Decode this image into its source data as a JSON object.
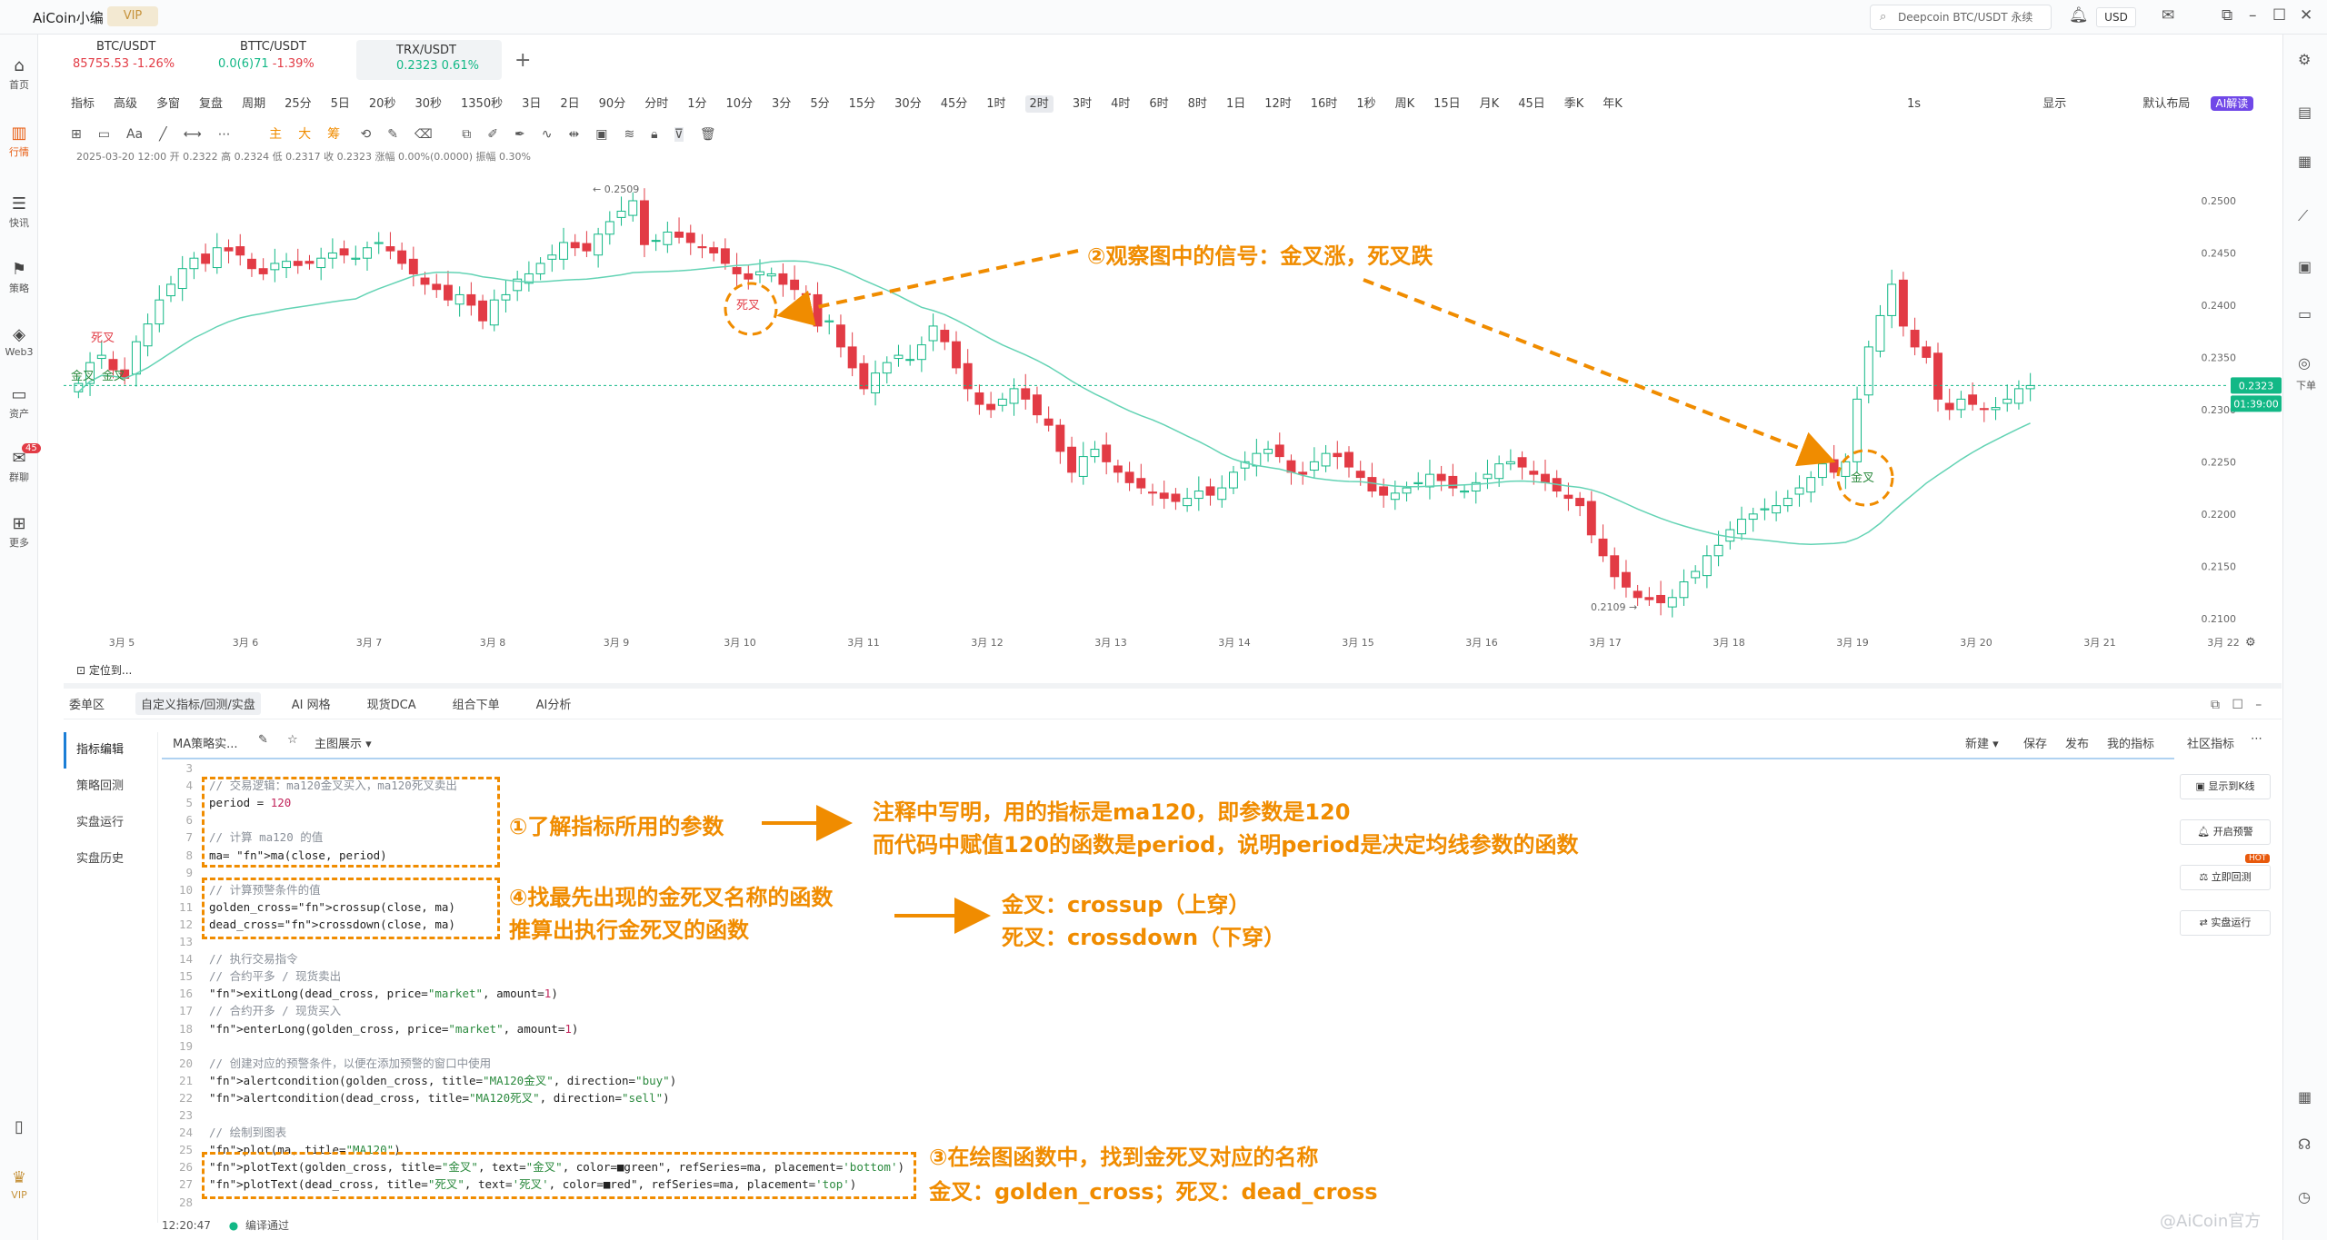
{
  "app": {
    "title": "AiCoin小编",
    "vip": "VIP"
  },
  "topbar": {
    "search": "Deepcoin BTC/USDT 永续",
    "currency": "USD"
  },
  "rail": [
    {
      "icon": "home-icon",
      "label": "首页"
    },
    {
      "icon": "market-icon",
      "label": "行情"
    },
    {
      "icon": "news-icon",
      "label": "快讯"
    },
    {
      "icon": "strategy-icon",
      "label": "策略"
    },
    {
      "icon": "web3-icon",
      "label": "Web3"
    },
    {
      "icon": "wallet-icon",
      "label": "资产"
    },
    {
      "icon": "chat-icon",
      "label": "群聊",
      "badge": "45"
    },
    {
      "icon": "more-icon",
      "label": "更多"
    }
  ],
  "rail_vip": "VIP",
  "right_rail_order": "下单",
  "tickers": [
    {
      "name": "BTC/USDT",
      "price": "85755.53",
      "change": "-1.26%"
    },
    {
      "name": "BTTC/USDT",
      "price": "0.0(6)71",
      "change": "-1.39%"
    },
    {
      "name": "TRX/USDT",
      "price": "0.2323",
      "change": "0.61%"
    }
  ],
  "toolbar": {
    "items": [
      "指标",
      "高级",
      "多窗",
      "复盘",
      "周期",
      "25分",
      "5日",
      "20秒",
      "30秒",
      "1350秒",
      "3日",
      "2日",
      "90分",
      "分时",
      "1分",
      "10分",
      "3分",
      "5分",
      "15分",
      "30分",
      "45分",
      "1时",
      "2时",
      "3时",
      "4时",
      "6时",
      "8时",
      "1日",
      "12时",
      "16时",
      "1秒",
      "周K",
      "15日",
      "月K",
      "45日",
      "季K",
      "年K"
    ],
    "selected": "2时",
    "right": [
      "1s",
      "显示",
      "默认布局",
      "AI解读"
    ]
  },
  "draw_toolbar": {
    "main": "主",
    "big": "大",
    "chou": "筹"
  },
  "ohlc": "2025-03-20 12:00  开 0.2322  高 0.2324  低 0.2317  收 0.2323  涨幅 0.00%(0.0000)  振幅 0.30%",
  "chart_data": {
    "type": "candlestick",
    "x_labels": [
      "3月 5",
      "3月 6",
      "3月 7",
      "3月 8",
      "3月 9",
      "3月 10",
      "3月 11",
      "3月 12",
      "3月 13",
      "3月 14",
      "3月 15",
      "3月 16",
      "3月 17",
      "3月 18",
      "3月 19",
      "3月 20",
      "3月 21",
      "3月 22"
    ],
    "y_ticks": [
      "0.2500",
      "0.2450",
      "0.2400",
      "0.2350",
      "0.2300",
      "0.2250",
      "0.2200",
      "0.2150",
      "0.2100"
    ],
    "ylim": [
      0.2085,
      0.252
    ],
    "high_marker": "0.2509",
    "low_marker": "0.2109",
    "last_price": "0.2323",
    "countdown": "01:39:00",
    "ma_color": "#63d3b4",
    "up_color": "#12b886",
    "down_color": "#e23b45",
    "close": [
      0.2325,
      0.2345,
      0.2352,
      0.2338,
      0.233,
      0.2365,
      0.2382,
      0.2405,
      0.242,
      0.2435,
      0.2445,
      0.244,
      0.2455,
      0.2452,
      0.2448,
      0.2435,
      0.243,
      0.244,
      0.2442,
      0.2438,
      0.244,
      0.2445,
      0.245,
      0.2448,
      0.2445,
      0.2455,
      0.246,
      0.2452,
      0.244,
      0.243,
      0.242,
      0.2415,
      0.2405,
      0.241,
      0.24,
      0.2385,
      0.2405,
      0.241,
      0.2425,
      0.243,
      0.244,
      0.2448,
      0.246,
      0.2455,
      0.2452,
      0.2468,
      0.248,
      0.249,
      0.25,
      0.2458,
      0.2462,
      0.247,
      0.2465,
      0.246,
      0.2455,
      0.245,
      0.244,
      0.243,
      0.2425,
      0.2432,
      0.243,
      0.242,
      0.2415,
      0.241,
      0.238,
      0.2385,
      0.236,
      0.234,
      0.232,
      0.2335,
      0.2345,
      0.2352,
      0.2348,
      0.2362,
      0.238,
      0.2365,
      0.234,
      0.232,
      0.2305,
      0.23,
      0.231,
      0.232,
      0.231,
      0.2295,
      0.2285,
      0.226,
      0.224,
      0.2255,
      0.2262,
      0.225,
      0.224,
      0.223,
      0.2225,
      0.222,
      0.2215,
      0.2212,
      0.2215,
      0.2222,
      0.2218,
      0.2225,
      0.224,
      0.225,
      0.2258,
      0.2262,
      0.2255,
      0.224,
      0.2238,
      0.225,
      0.2258,
      0.2255,
      0.2245,
      0.2235,
      0.2222,
      0.2218,
      0.222,
      0.2225,
      0.223,
      0.2238,
      0.2232,
      0.2225,
      0.2222,
      0.223,
      0.2238,
      0.2248,
      0.225,
      0.2245,
      0.2238,
      0.223,
      0.2222,
      0.2215,
      0.2208,
      0.218,
      0.216,
      0.214,
      0.213,
      0.212,
      0.2118,
      0.2115,
      0.212,
      0.2135,
      0.2145,
      0.216,
      0.217,
      0.2185,
      0.2195,
      0.22,
      0.2205,
      0.2208,
      0.2215,
      0.2225,
      0.2235,
      0.2248,
      0.224,
      0.225,
      0.231,
      0.236,
      0.239,
      0.242,
      0.238,
      0.236,
      0.235,
      0.231,
      0.23,
      0.231,
      0.2305,
      0.23,
      0.2302,
      0.231,
      0.232,
      0.2323
    ]
  },
  "chart_labels": {
    "dead1": "死叉",
    "gold1": "金叉",
    "gold1b": "金叉",
    "dead2": "死叉",
    "gold2": "金叉"
  },
  "panel": {
    "tabs": [
      "委单区",
      "自定义指标/回测/实盘",
      "AI 网格",
      "现货DCA",
      "组合下单",
      "AI分析"
    ],
    "active_tab": "自定义指标/回测/实盘",
    "left_menu": [
      "指标编辑",
      "策略回测",
      "实盘运行",
      "实盘历史"
    ],
    "editor": {
      "name": "MA策略实...",
      "display": "主图展示",
      "actions": [
        "新建",
        "保存",
        "发布",
        "我的指标",
        "社区指标"
      ]
    },
    "right_buttons": [
      "显示到K线",
      "开启预警",
      "立即回测",
      "实盘运行"
    ],
    "hot": "HOT",
    "status_time": "12:20:47",
    "status_text": "编译通过"
  },
  "code": [
    {
      "n": "3",
      "t": ""
    },
    {
      "n": "4",
      "t": "// 交易逻辑：ma120金叉买入，ma120死叉卖出",
      "c": "cm"
    },
    {
      "n": "5",
      "t": "period = 120"
    },
    {
      "n": "6",
      "t": ""
    },
    {
      "n": "7",
      "t": "// 计算 ma120 的值",
      "c": "cm"
    },
    {
      "n": "8",
      "t": "ma= ma(close, period)"
    },
    {
      "n": "9",
      "t": ""
    },
    {
      "n": "10",
      "t": "// 计算预警条件的值",
      "c": "cm"
    },
    {
      "n": "11",
      "t": "golden_cross=crossup(close, ma)"
    },
    {
      "n": "12",
      "t": "dead_cross=crossdown(close, ma)"
    },
    {
      "n": "13",
      "t": ""
    },
    {
      "n": "14",
      "t": "// 执行交易指令",
      "c": "cm"
    },
    {
      "n": "15",
      "t": "// 合约平多 / 现货卖出",
      "c": "cm"
    },
    {
      "n": "16",
      "t": "exitLong(dead_cross, price=\"market\", amount=1)"
    },
    {
      "n": "17",
      "t": "// 合约开多 / 现货买入",
      "c": "cm"
    },
    {
      "n": "18",
      "t": "enterLong(golden_cross, price=\"market\", amount=1)"
    },
    {
      "n": "19",
      "t": ""
    },
    {
      "n": "20",
      "t": "// 创建对应的预警条件，以便在添加预警的窗口中使用",
      "c": "cm"
    },
    {
      "n": "21",
      "t": "alertcondition(golden_cross, title=\"MA120金叉\", direction=\"buy\")"
    },
    {
      "n": "22",
      "t": "alertcondition(dead_cross, title=\"MA120死叉\", direction=\"sell\")"
    },
    {
      "n": "23",
      "t": ""
    },
    {
      "n": "24",
      "t": "// 绘制到图表",
      "c": "cm"
    },
    {
      "n": "25",
      "t": "plot(ma, title=\"MA120\")"
    },
    {
      "n": "26",
      "t": "plotText(golden_cross, title=\"金叉\", text=\"金叉\", color=■green\", refSeries=ma, placement='bottom')"
    },
    {
      "n": "27",
      "t": "plotText(dead_cross, title=\"死叉\", text='死叉', color=■red\", refSeries=ma, placement='top')"
    },
    {
      "n": "28",
      "t": ""
    }
  ],
  "annotations": {
    "a2": "②观察图中的信号：金叉涨，死叉跌",
    "a1": "①了解指标所用的参数",
    "a1_note1": "注释中写明，用的指标是ma120，即参数是120",
    "a1_note2": "而代码中赋值120的函数是period，说明period是决定均线参数的函数",
    "a4_1": "④找最先出现的金死叉名称的函数",
    "a4_2": "推算出执行金死叉的函数",
    "a4_note1": "金叉：crossup（上穿）",
    "a4_note2": "死叉：crossdown（下穿）",
    "a3_1": "③在绘图函数中，找到金死叉对应的名称",
    "a3_2": "金叉：golden_cross；死叉：dead_cross"
  },
  "watermark": "@AiCoin官方",
  "location": "定位到..."
}
